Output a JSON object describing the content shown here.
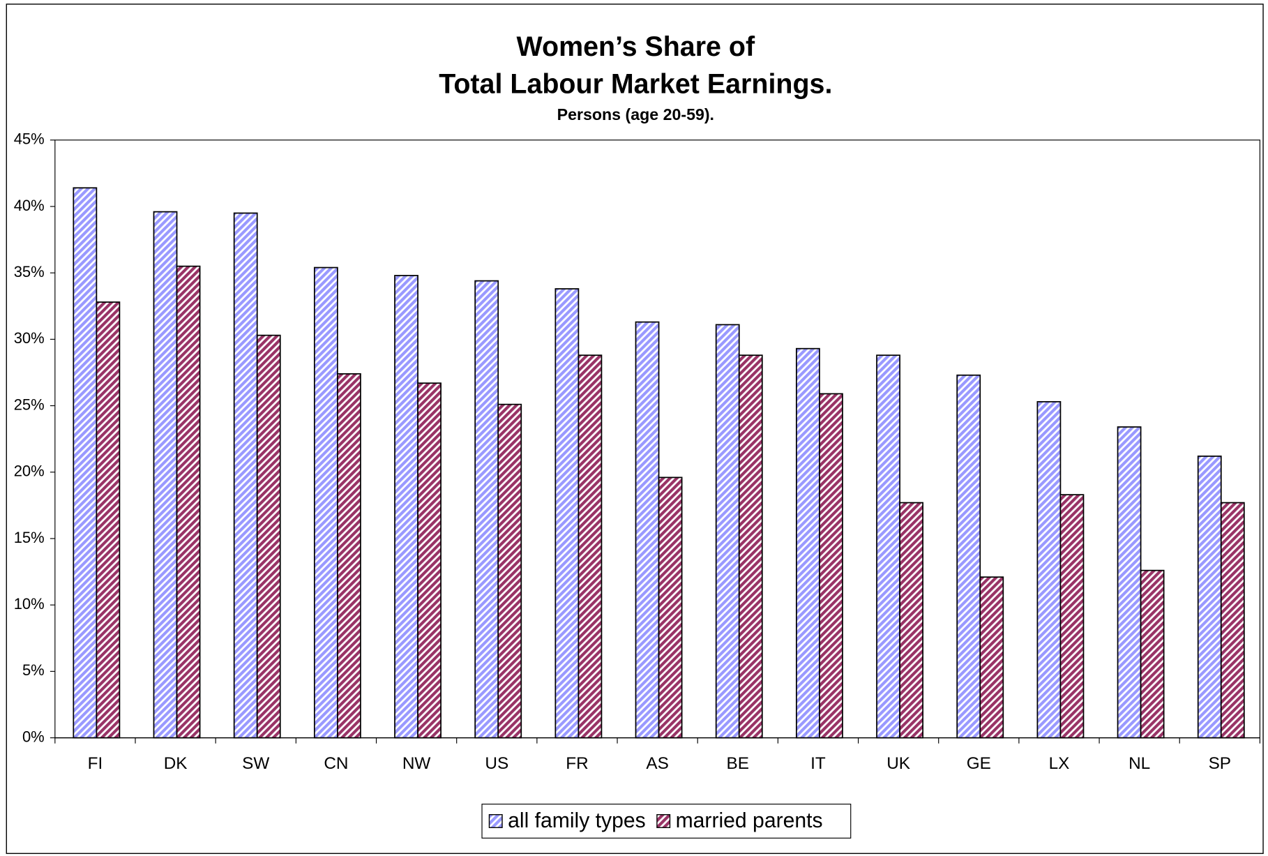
{
  "chart_data": {
    "type": "bar",
    "title": [
      "Women’s Share of",
      "Total Labour Market Earnings."
    ],
    "subtitle": "Persons (age 20-59).",
    "categories": [
      "FI",
      "DK",
      "SW",
      "CN",
      "NW",
      "US",
      "FR",
      "AS",
      "BE",
      "IT",
      "UK",
      "GE",
      "LX",
      "NL",
      "SP"
    ],
    "series": [
      {
        "name": "all family types",
        "color": "#9999ff",
        "values": [
          41.4,
          39.6,
          39.5,
          35.4,
          34.8,
          34.4,
          33.8,
          31.3,
          31.1,
          29.3,
          28.8,
          27.3,
          25.3,
          23.4,
          21.2
        ]
      },
      {
        "name": "married parents",
        "color": "#993366",
        "values": [
          32.8,
          35.5,
          30.3,
          27.4,
          26.7,
          25.1,
          28.8,
          19.6,
          28.8,
          25.9,
          17.7,
          12.1,
          18.3,
          12.6,
          17.7
        ]
      }
    ],
    "ylim": [
      0,
      45
    ],
    "yticks": [
      {
        "value": 0,
        "label": "0%"
      },
      {
        "value": 5,
        "label": "5%"
      },
      {
        "value": 10,
        "label": "10%"
      },
      {
        "value": 15,
        "label": "15%"
      },
      {
        "value": 20,
        "label": "20%"
      },
      {
        "value": 25,
        "label": "25%"
      },
      {
        "value": 30,
        "label": "30%"
      },
      {
        "value": 35,
        "label": "35%"
      },
      {
        "value": 40,
        "label": "40%"
      },
      {
        "value": 45,
        "label": "45%"
      }
    ],
    "grid": false,
    "legend": "bottom"
  }
}
